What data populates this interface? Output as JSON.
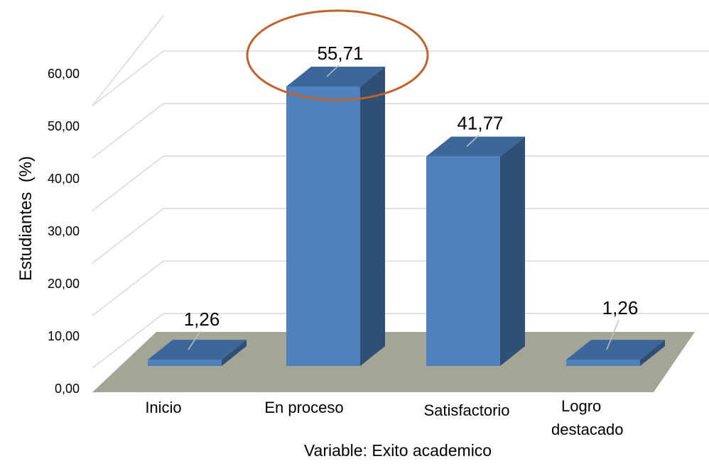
{
  "chart_data": {
    "type": "bar",
    "categories": [
      "Inicio",
      "En proceso",
      "Satisfactorio",
      "Logro destacado"
    ],
    "category_lines": [
      [
        "Inicio"
      ],
      [
        "En proceso"
      ],
      [
        "Satisfactorio"
      ],
      [
        "Logro",
        "destacado"
      ]
    ],
    "values": [
      1.26,
      55.71,
      41.77,
      1.26
    ],
    "value_labels": [
      "1,26",
      "55,71",
      "41,77",
      "1,26"
    ],
    "xlabel": "Variable: Exito academico",
    "ylabel": "Estudiantes  (%)",
    "ylim": [
      0,
      60
    ],
    "yticks": [
      0,
      10,
      20,
      30,
      40,
      50,
      60
    ],
    "ytick_labels": [
      "0,00",
      "10,00",
      "20,00",
      "30,00",
      "40,00",
      "50,00",
      "60,00"
    ],
    "grid": true,
    "legend": "none",
    "highlighted_category": "En proceso",
    "colors": {
      "bar_front": "#4f81bd",
      "bar_side": "#2f4f76",
      "bar_top": "#3b679a",
      "floor": "#a5a596",
      "highlight_ring": "#c0622b"
    }
  }
}
